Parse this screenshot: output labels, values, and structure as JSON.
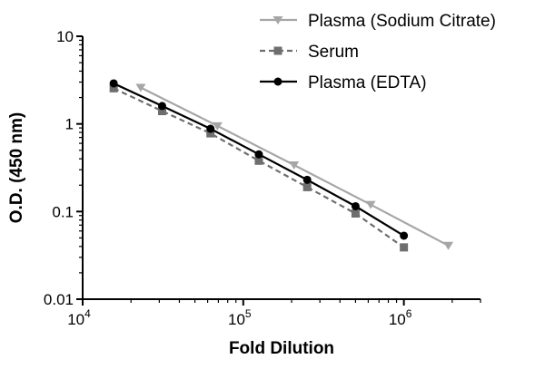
{
  "chart_data": {
    "type": "line",
    "title": "",
    "xlabel": "Fold Dilution",
    "ylabel": "O.D. (450 nm)",
    "x_scale": "log",
    "y_scale": "log",
    "xlim": [
      10000,
      3000000
    ],
    "ylim": [
      0.01,
      10
    ],
    "x_ticks": [
      {
        "value": 10000,
        "base": "10",
        "exp": "4"
      },
      {
        "value": 100000,
        "base": "10",
        "exp": "5"
      },
      {
        "value": 1000000,
        "base": "10",
        "exp": "6"
      }
    ],
    "y_ticks": [
      {
        "value": 0.01,
        "label": "0.01"
      },
      {
        "value": 0.1,
        "label": "0.1"
      },
      {
        "value": 1,
        "label": "1"
      },
      {
        "value": 10,
        "label": "10"
      }
    ],
    "grid": false,
    "legend_position": "top-right",
    "series": [
      {
        "name": "Plasma (Sodium Citrate)",
        "color": "#a6a6a6",
        "line_style": "solid",
        "marker": "triangle-down",
        "x": [
          23000,
          69000,
          207000,
          621000,
          1890000
        ],
        "y": [
          2.6,
          0.95,
          0.34,
          0.12,
          0.041
        ]
      },
      {
        "name": "Serum",
        "color": "#6e6e6e",
        "line_style": "dashed",
        "marker": "square",
        "x": [
          15600,
          31250,
          62500,
          125000,
          250000,
          500000,
          1000000
        ],
        "y": [
          2.55,
          1.4,
          0.78,
          0.38,
          0.19,
          0.095,
          0.039
        ]
      },
      {
        "name": "Plasma (EDTA)",
        "color": "#000000",
        "line_style": "solid",
        "marker": "circle",
        "x": [
          15600,
          31250,
          62500,
          125000,
          250000,
          500000,
          1000000
        ],
        "y": [
          2.9,
          1.6,
          0.88,
          0.45,
          0.23,
          0.115,
          0.053
        ]
      }
    ]
  }
}
